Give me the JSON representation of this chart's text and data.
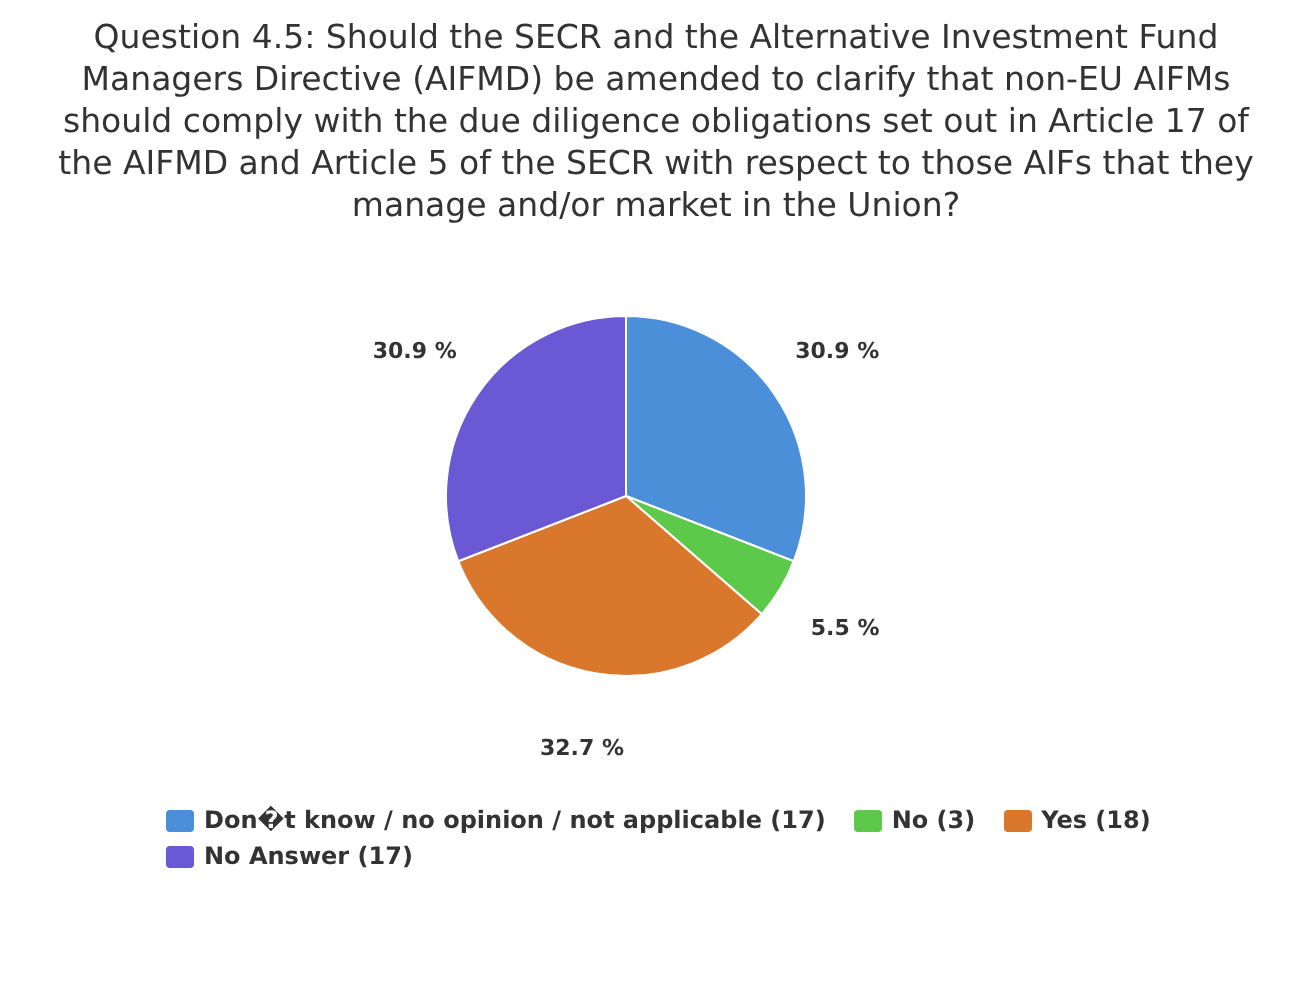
{
  "chart_data": {
    "type": "pie",
    "title": "Question 4.5: Should the SECR and the Alternative Investment Fund Managers Directive (AIFMD) be amended to clarify that non-EU AIFMs should comply with the due diligence obligations set out in Article 17 of the AIFMD and Article 5 of the SECR with respect to those AIFs that they manage and/or market in the Union?",
    "categories": [
      "Don�t know / no opinion / not applicable (17)",
      "No (3)",
      "Yes (18)",
      "No Answer (17)"
    ],
    "values": [
      30.9,
      5.5,
      32.7,
      30.9
    ],
    "colors": [
      "#4a8fd8",
      "#5cc94a",
      "#d9782c",
      "#6a58d4"
    ],
    "value_labels": [
      "30.9 %",
      "5.5 %",
      "32.7 %",
      "30.9 %"
    ],
    "legend": "bottom"
  }
}
